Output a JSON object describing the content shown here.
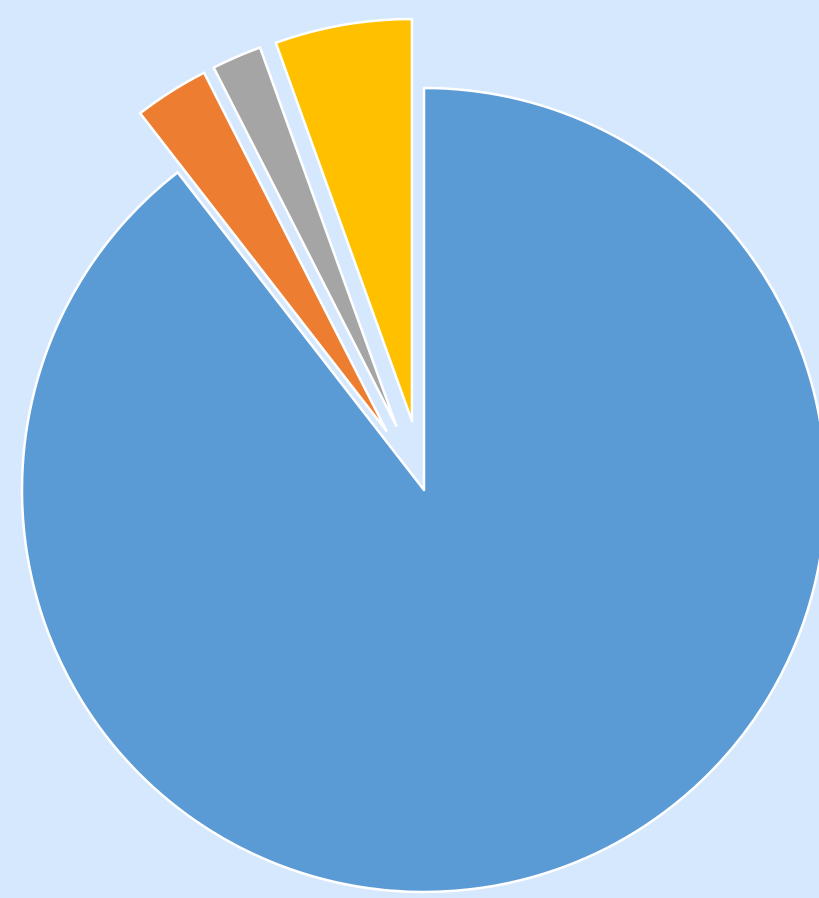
{
  "chart_data": {
    "type": "pie",
    "exploded": true,
    "values": [
      89.5,
      3.0,
      2.0,
      5.5
    ],
    "colors": [
      "#5b9bd5",
      "#ed7d31",
      "#a5a5a5",
      "#ffc000"
    ],
    "legend": "none",
    "data_labels": false
  },
  "page": {
    "background": "#d6e8fd"
  }
}
